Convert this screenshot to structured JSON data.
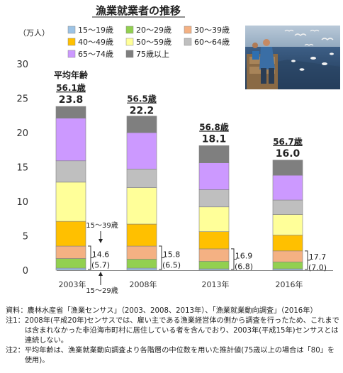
{
  "chart_data": {
    "type": "bar",
    "stacked": true,
    "title": "漁業就業者の推移",
    "ylabel": "（万人）",
    "ylim": [
      0,
      30
    ],
    "yticks": [
      0,
      5,
      10,
      15,
      20,
      25,
      30
    ],
    "categories": [
      "2003年",
      "2008年",
      "2013年",
      "2016年"
    ],
    "series": [
      {
        "name": "15～19歳",
        "color": "#9cc3e5",
        "values": [
          0.3,
          0.3,
          0.2,
          0.2
        ]
      },
      {
        "name": "20～29歳",
        "color": "#92d050",
        "values": [
          1.4,
          1.3,
          1.1,
          1.0
        ]
      },
      {
        "name": "30～39歳",
        "color": "#f4b183",
        "values": [
          1.8,
          1.9,
          1.8,
          1.6
        ]
      },
      {
        "name": "40～49歳",
        "color": "#ffc000",
        "values": [
          3.6,
          3.2,
          2.5,
          2.3
        ]
      },
      {
        "name": "50～59歳",
        "color": "#ffff99",
        "values": [
          5.7,
          5.3,
          3.6,
          3.0
        ]
      },
      {
        "name": "60～64歳",
        "color": "#bfbfbf",
        "values": [
          3.1,
          2.7,
          2.5,
          2.1
        ]
      },
      {
        "name": "65～74歳",
        "color": "#cc99ff",
        "values": [
          6.2,
          5.3,
          3.9,
          3.6
        ]
      },
      {
        "name": "75歳以上",
        "color": "#7f7f7f",
        "values": [
          1.7,
          2.4,
          2.5,
          2.2
        ]
      }
    ],
    "totals": [
      "23.8",
      "22.2",
      "18.1",
      "16.0"
    ],
    "avg_age_header": "平均年齢",
    "avg_ages": [
      "56.1歳",
      "56.5歳",
      "56.8歳",
      "56.7歳"
    ],
    "young_labels": [
      "14.6",
      "15.8",
      "16.9",
      "17.7"
    ],
    "young_sub_labels": [
      "(5.7)",
      "(6.5)",
      "(6.8)",
      "(7.0)"
    ],
    "annot_15_39": "15～39歳",
    "annot_15_29": "15～29歳",
    "legend_position": "top-right",
    "grid": false
  },
  "notes": {
    "source": "資料：農林水産省「漁業センサス」（2003、2008、2013年）、「漁業就業動向調査」（2016年）",
    "note1_tag": "注1：",
    "note1_body": "2008年(平成20年)センサスでは、雇い主である漁業経営体の側から調査を行ったため、これまでは含まれなかった非沿海市町村に居住している者を含んでおり、2003年(平成15年)センサスとは連続しない。",
    "note2_tag": "注2：",
    "note2_body": "平均年齢は、漁業就業動向調査より各階層の中位数を用いた推計値(75歳以上の場合は「80」を使用)。"
  },
  "colors": {
    "axis": "#808080",
    "text": "#222222"
  },
  "photo": {
    "icon": "fishermen-photo"
  }
}
